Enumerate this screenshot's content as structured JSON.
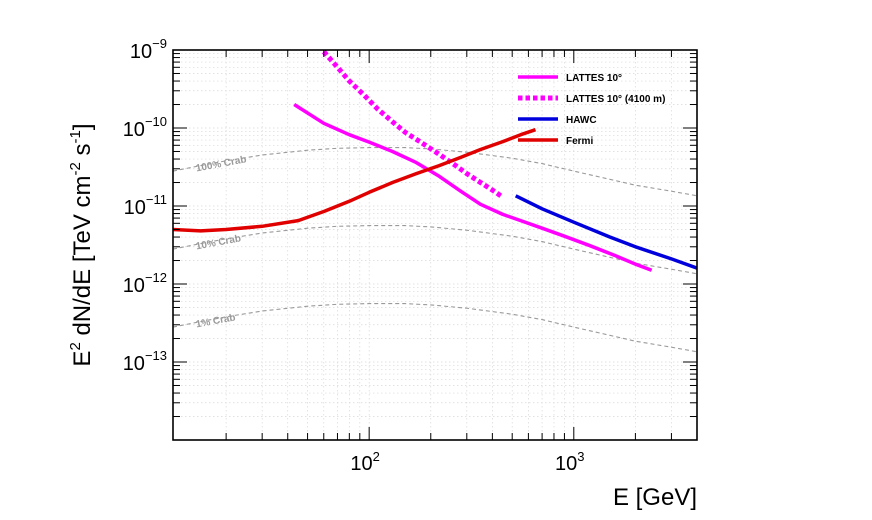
{
  "chart_data": {
    "type": "line",
    "title": "",
    "xlabel": "E [GeV]",
    "ylabel_parts": [
      "E",
      "2",
      " dN/dE [TeV cm",
      "-2",
      " s",
      "-1",
      "]"
    ],
    "x_scale": "log",
    "y_scale": "log",
    "xlim": [
      11,
      4000
    ],
    "ylim": [
      1e-14,
      1e-09
    ],
    "grid": true,
    "x_ticks": [
      {
        "value": 100,
        "base": "10",
        "exp": "2"
      },
      {
        "value": 1000,
        "base": "10",
        "exp": "3"
      }
    ],
    "y_ticks": [
      {
        "value": 1e-13,
        "base": "10",
        "exp": "−13"
      },
      {
        "value": 1e-12,
        "base": "10",
        "exp": "−12"
      },
      {
        "value": 1e-11,
        "base": "10",
        "exp": "−11"
      },
      {
        "value": 1e-10,
        "base": "10",
        "exp": "−10"
      },
      {
        "value": 1e-09,
        "base": "10",
        "exp": "−9"
      }
    ],
    "legend_position": "top-right",
    "series": [
      {
        "name": "LATTES 10°",
        "color": "#ff00ff",
        "style": "solid",
        "x": [
          43,
          60,
          80,
          100,
          130,
          170,
          220,
          280,
          350,
          450,
          550,
          700,
          900,
          1200,
          1600,
          2000,
          2400
        ],
        "y": [
          2e-10,
          1.15e-10,
          8.2e-11,
          6.6e-11,
          5e-11,
          3.6e-11,
          2.4e-11,
          1.55e-11,
          1.05e-11,
          7.8e-12,
          6.5e-12,
          5.2e-12,
          4.1e-12,
          3.1e-12,
          2.3e-12,
          1.8e-12,
          1.5e-12
        ]
      },
      {
        "name": "LATTES 10° (4100 m)",
        "color": "#ff00ff",
        "style": "dotted",
        "x": [
          60,
          70,
          80,
          95,
          110,
          130,
          150,
          180,
          220,
          260,
          300,
          350,
          400,
          440
        ],
        "y": [
          9.5e-10,
          6e-10,
          4e-10,
          2.6e-10,
          1.75e-10,
          1.2e-10,
          8.8e-11,
          6.5e-11,
          4.6e-11,
          3.4e-11,
          2.6e-11,
          2e-11,
          1.6e-11,
          1.35e-11
        ]
      },
      {
        "name": "HAWC",
        "color": "#0000dd",
        "style": "solid",
        "x": [
          520,
          700,
          1000,
          1500,
          2000,
          3000,
          4000
        ],
        "y": [
          1.35e-11,
          9.2e-12,
          6.2e-12,
          4e-12,
          3e-12,
          2.1e-12,
          1.6e-12
        ]
      },
      {
        "name": "Fermi",
        "color": "#e00000",
        "style": "solid",
        "x": [
          11,
          15,
          20,
          30,
          45,
          60,
          80,
          100,
          130,
          170,
          220,
          280,
          350,
          450,
          550,
          650
        ],
        "y": [
          5e-12,
          4.8e-12,
          5e-12,
          5.5e-12,
          6.5e-12,
          8.5e-12,
          1.15e-11,
          1.5e-11,
          2e-11,
          2.6e-11,
          3.3e-11,
          4.2e-11,
          5.3e-11,
          6.7e-11,
          8.2e-11,
          9.5e-11
        ]
      }
    ],
    "reference_curves": [
      {
        "label": "100% Crab",
        "color": "#9a9a9a",
        "style": "dashed",
        "x": [
          11,
          15,
          20,
          30,
          50,
          70,
          100,
          150,
          200,
          300,
          500,
          700,
          1000,
          1500,
          2000,
          3000,
          4000
        ],
        "y": [
          2.8e-11,
          3.3e-11,
          3.8e-11,
          4.5e-11,
          5.2e-11,
          5.5e-11,
          5.6e-11,
          5.6e-11,
          5.4e-11,
          4.9e-11,
          4.1e-11,
          3.5e-11,
          2.8e-11,
          2.2e-11,
          1.85e-11,
          1.55e-11,
          1.35e-11
        ]
      },
      {
        "label": "10% Crab",
        "color": "#9a9a9a",
        "style": "dashed",
        "x": [
          11,
          15,
          20,
          30,
          50,
          70,
          100,
          150,
          200,
          300,
          500,
          700,
          1000,
          1500,
          2000,
          3000,
          4000
        ],
        "y": [
          2.8e-12,
          3.3e-12,
          3.8e-12,
          4.5e-12,
          5.2e-12,
          5.5e-12,
          5.6e-12,
          5.6e-12,
          5.4e-12,
          4.9e-12,
          4.1e-12,
          3.5e-12,
          2.8e-12,
          2.2e-12,
          1.85e-12,
          1.55e-12,
          1.35e-12
        ]
      },
      {
        "label": "1% Crab",
        "color": "#9a9a9a",
        "style": "dashed",
        "x": [
          11,
          15,
          20,
          30,
          50,
          70,
          100,
          150,
          200,
          300,
          500,
          700,
          1000,
          1500,
          2000,
          3000,
          4000
        ],
        "y": [
          2.8e-13,
          3.3e-13,
          3.8e-13,
          4.5e-13,
          5.2e-13,
          5.5e-13,
          5.6e-13,
          5.6e-13,
          5.4e-13,
          4.9e-13,
          4.1e-13,
          3.5e-13,
          2.8e-13,
          2.2e-13,
          1.85e-13,
          1.55e-13,
          1.35e-13
        ]
      }
    ]
  }
}
